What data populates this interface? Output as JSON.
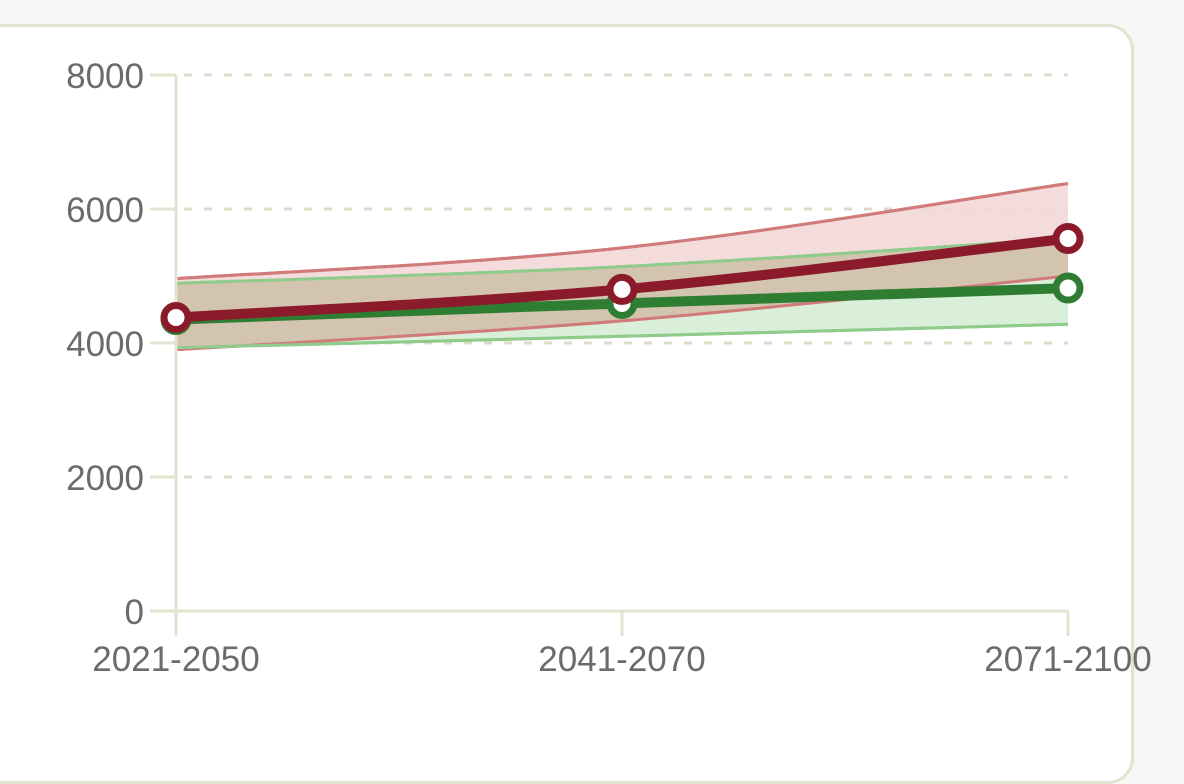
{
  "chart_data": {
    "type": "line",
    "categories": [
      "2021-2050",
      "2041-2070",
      "2071-2100"
    ],
    "ylim": [
      0,
      8000
    ],
    "yticks": [
      "0",
      "2000",
      "4000",
      "6000",
      "8000"
    ],
    "grid": true,
    "series": [
      {
        "values": [
          4380,
          4800,
          5560
        ],
        "band_low": [
          3900,
          4330,
          5000
        ],
        "band_high": [
          4960,
          5420,
          6380
        ],
        "color": "#8b1a2b",
        "band_fill": "#f2d6d6",
        "band_edge": "#d07a7a"
      },
      {
        "values": [
          4350,
          4590,
          4820
        ],
        "band_low": [
          3930,
          4100,
          4280
        ],
        "band_high": [
          4890,
          5140,
          5560
        ],
        "color": "#2e7d32",
        "band_fill": "#d3ecd2",
        "band_edge": "#8fcb8a"
      }
    ],
    "colors": {
      "axis": "#e1e4cf",
      "grid": "#dcdcc8",
      "overlap": "#d2c4ae",
      "marker_fill": "#ffffff"
    }
  }
}
